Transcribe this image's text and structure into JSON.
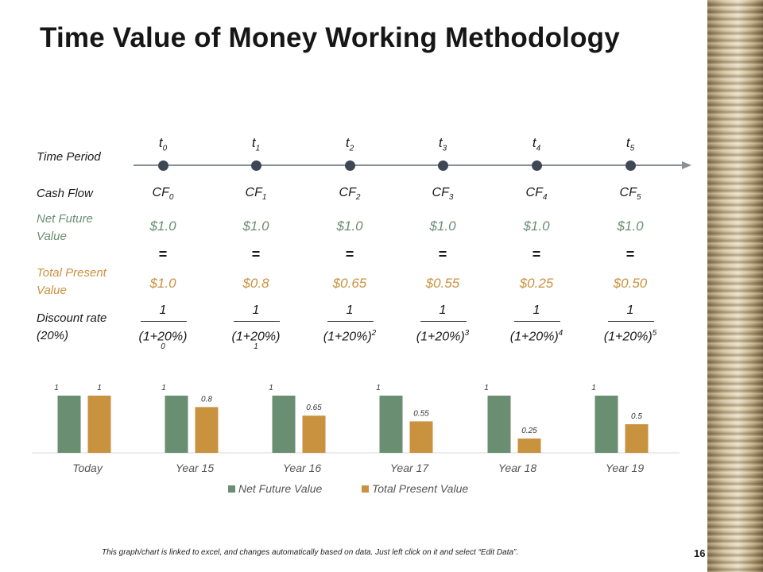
{
  "title": "Time Value of Money Working Methodology",
  "colors": {
    "net_future": "#6a8e72",
    "present": "#c8923f",
    "timeline_dot": "#3e4855"
  },
  "labels": {
    "time_period": "Time Period",
    "cash_flow": "Cash Flow",
    "net_future_value": "Net Future Value",
    "total_present_value": "Total Present Value",
    "discount_rate": "Discount rate (20%)"
  },
  "periods": [
    {
      "t": "t",
      "sub": "0",
      "cf": "CF",
      "cf_sub": "0",
      "nfv": "$1.0",
      "eq": "=",
      "tpv": "$1.0",
      "num": "1",
      "den": "(1+20%)",
      "den_exp": "",
      "den_below": "0"
    },
    {
      "t": "t",
      "sub": "1",
      "cf": "CF",
      "cf_sub": "1",
      "nfv": "$1.0",
      "eq": "=",
      "tpv": "$0.8",
      "num": "1",
      "den": "(1+20%)",
      "den_exp": "",
      "den_below": "1"
    },
    {
      "t": "t",
      "sub": "2",
      "cf": "CF",
      "cf_sub": "2",
      "nfv": "$1.0",
      "eq": "=",
      "tpv": "$0.65",
      "num": "1",
      "den": "(1+20%)",
      "den_exp": "2",
      "den_below": ""
    },
    {
      "t": "t",
      "sub": "3",
      "cf": "CF",
      "cf_sub": "3",
      "nfv": "$1.0",
      "eq": "=",
      "tpv": "$0.55",
      "num": "1",
      "den": "(1+20%)",
      "den_exp": "3",
      "den_below": ""
    },
    {
      "t": "t",
      "sub": "4",
      "cf": "CF",
      "cf_sub": "4",
      "nfv": "$1.0",
      "eq": "=",
      "tpv": "$0.25",
      "num": "1",
      "den": "(1+20%)",
      "den_exp": "4",
      "den_below": ""
    },
    {
      "t": "t",
      "sub": "5",
      "cf": "CF",
      "cf_sub": "5",
      "nfv": "$1.0",
      "eq": "=",
      "tpv": "$0.50",
      "num": "1",
      "den": "(1+20%)",
      "den_exp": "5",
      "den_below": ""
    }
  ],
  "chart_data": {
    "type": "bar",
    "categories": [
      "Today",
      "Year 15",
      "Year 16",
      "Year 17",
      "Year 18",
      "Year 19"
    ],
    "series": [
      {
        "name": "Net Future Value",
        "values": [
          1,
          1,
          1,
          1,
          1,
          1
        ],
        "labels": [
          "1",
          "1",
          "1",
          "1",
          "1",
          "1"
        ]
      },
      {
        "name": "Total Present Value",
        "values": [
          1,
          0.8,
          0.65,
          0.55,
          0.25,
          0.5
        ],
        "labels": [
          "1",
          "0.8",
          "0.65",
          "0.55",
          "0.25",
          "0.5"
        ]
      }
    ],
    "ylim": [
      0,
      1.25
    ],
    "legend_position": "bottom"
  },
  "footnote": "This graph/chart is linked to excel, and changes automatically based on data. Just left click on it and select “Edit Data”.",
  "page_number": "16"
}
